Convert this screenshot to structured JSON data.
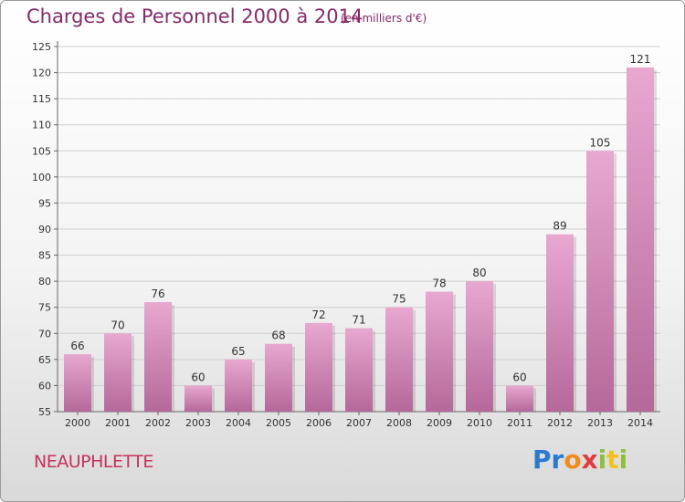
{
  "header": {
    "title": "Charges de Personnel 2000 à 2014",
    "subtitle": "(en milliers d'€)"
  },
  "footer": {
    "commune": "NEAUPHLETTE",
    "logo_text": "Proxiti"
  },
  "colors": {
    "bar_top": "#e8a8d0",
    "bar_bottom": "#b5689a",
    "title": "#8a2a6a",
    "commune": "#c8325a"
  },
  "chart_data": {
    "type": "bar",
    "categories": [
      "2000",
      "2001",
      "2002",
      "2003",
      "2004",
      "2005",
      "2006",
      "2007",
      "2008",
      "2009",
      "2010",
      "2011",
      "2012",
      "2013",
      "2014"
    ],
    "values": [
      66,
      70,
      76,
      60,
      65,
      68,
      72,
      71,
      75,
      78,
      80,
      60,
      89,
      105,
      121
    ],
    "title": "Charges de Personnel 2000 à 2014",
    "ylim": [
      55,
      125
    ],
    "yticks": [
      55,
      60,
      65,
      70,
      75,
      80,
      85,
      90,
      95,
      100,
      105,
      110,
      115,
      120,
      125
    ],
    "grid": true
  }
}
